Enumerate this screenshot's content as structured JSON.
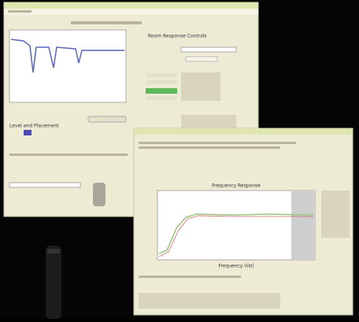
{
  "window_main": {
    "panel_title": "Room Response Controls",
    "section_title": "Level and Placement"
  },
  "window_response": {
    "chart_title": "Frequency Response",
    "x_label": "Frequency (Hz)"
  }
}
